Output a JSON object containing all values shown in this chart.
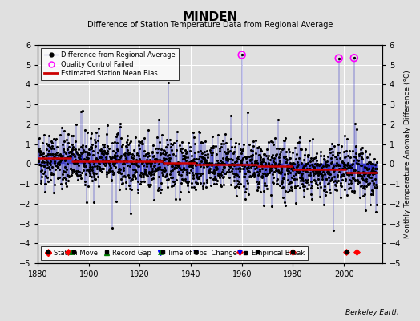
{
  "title": "MINDEN",
  "subtitle": "Difference of Station Temperature Data from Regional Average",
  "ylabel_right": "Monthly Temperature Anomaly Difference (°C)",
  "xlim": [
    1880,
    2015
  ],
  "ylim": [
    -5,
    6
  ],
  "yticks": [
    -5,
    -4,
    -3,
    -2,
    -1,
    0,
    1,
    2,
    3,
    4,
    5,
    6
  ],
  "xticks": [
    1880,
    1900,
    1920,
    1940,
    1960,
    1980,
    2000
  ],
  "background_color": "#e0e0e0",
  "plot_bg_color": "#e0e0e0",
  "grid_color": "#ffffff",
  "line_color": "#0000bb",
  "marker_color": "#000000",
  "bias_color": "#cc0000",
  "qc_color": "#ff00ff",
  "seed": 42,
  "start_year": 1880,
  "end_year": 2013,
  "station_moves": [
    1884,
    1892,
    1959,
    1980,
    2001,
    2005
  ],
  "record_gaps": [
    1893,
    1928
  ],
  "obs_changes": [
    1942,
    1959
  ],
  "empirical_breaks": [
    1884,
    1894,
    1907,
    1929,
    1942,
    1966,
    1980,
    2001
  ],
  "qc_failed_years": [
    1960,
    1998,
    2004
  ],
  "bias_segments": [
    {
      "start": 1880,
      "end": 1893,
      "value": 0.3
    },
    {
      "start": 1893,
      "end": 1929,
      "value": 0.15
    },
    {
      "start": 1929,
      "end": 1942,
      "value": 0.05
    },
    {
      "start": 1942,
      "end": 1966,
      "value": -0.02
    },
    {
      "start": 1966,
      "end": 1980,
      "value": -0.1
    },
    {
      "start": 1980,
      "end": 2001,
      "value": -0.25
    },
    {
      "start": 2001,
      "end": 2013,
      "value": -0.45
    }
  ]
}
